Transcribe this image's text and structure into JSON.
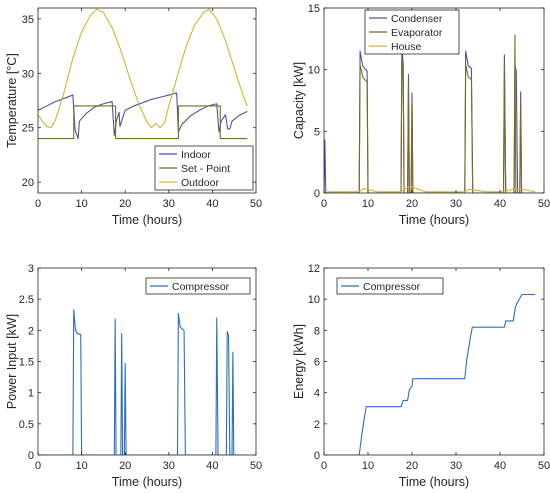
{
  "chart_data": [
    {
      "type": "line",
      "title": "",
      "xlabel": "Time (hours)",
      "ylabel": "Temperature [°C]",
      "xlim": [
        0,
        50
      ],
      "ylim": [
        19,
        36
      ],
      "xticks": [
        0,
        10,
        20,
        30,
        40,
        50
      ],
      "yticks": [
        20,
        25,
        30,
        35
      ],
      "legend_position": "lower-right",
      "series": [
        {
          "name": "Indoor",
          "color": "#4a55a2",
          "points": [
            [
              0,
              26.6
            ],
            [
              2,
              27.0
            ],
            [
              4,
              27.4
            ],
            [
              6,
              27.7
            ],
            [
              8,
              28.0
            ],
            [
              8.5,
              24.8
            ],
            [
              9.2,
              24.0
            ],
            [
              9.5,
              25.6
            ],
            [
              11,
              26.3
            ],
            [
              13,
              26.9
            ],
            [
              15,
              27.2
            ],
            [
              17,
              27.4
            ],
            [
              17.5,
              24.3
            ],
            [
              18,
              25.7
            ],
            [
              18.6,
              26.4
            ],
            [
              18.8,
              25.1
            ],
            [
              19.5,
              26.0
            ],
            [
              20,
              26.6
            ],
            [
              22,
              27.0
            ],
            [
              24,
              27.3
            ],
            [
              26,
              27.6
            ],
            [
              28,
              27.8
            ],
            [
              30,
              28.0
            ],
            [
              31.8,
              28.2
            ],
            [
              32.2,
              24.6
            ],
            [
              33,
              25.3
            ],
            [
              35,
              26.1
            ],
            [
              37,
              26.6
            ],
            [
              39,
              27.0
            ],
            [
              41,
              27.2
            ],
            [
              41.5,
              24.6
            ],
            [
              42,
              25.6
            ],
            [
              43,
              26.2
            ],
            [
              43.5,
              24.9
            ],
            [
              44,
              24.9
            ],
            [
              44.5,
              25.6
            ],
            [
              46,
              26.1
            ],
            [
              48,
              26.5
            ]
          ]
        },
        {
          "name": "Set - Point",
          "color": "#7a6a22",
          "points": [
            [
              0,
              24
            ],
            [
              8.2,
              24
            ],
            [
              8.2,
              27
            ],
            [
              17.8,
              27
            ],
            [
              17.8,
              24
            ],
            [
              32.2,
              24
            ],
            [
              32.2,
              27
            ],
            [
              41.8,
              27
            ],
            [
              41.8,
              24
            ],
            [
              48,
              24
            ]
          ]
        },
        {
          "name": "Outdoor",
          "color": "#d4b332",
          "points": [
            [
              0,
              26.2
            ],
            [
              1,
              25.6
            ],
            [
              2,
              25.1
            ],
            [
              3,
              25.0
            ],
            [
              4,
              25.7
            ],
            [
              6,
              28.3
            ],
            [
              8,
              31.4
            ],
            [
              10,
              33.8
            ],
            [
              12,
              35.3
            ],
            [
              13.5,
              35.9
            ],
            [
              15,
              35.6
            ],
            [
              17,
              34.2
            ],
            [
              19,
              32.1
            ],
            [
              21,
              29.6
            ],
            [
              23,
              27.3
            ],
            [
              25,
              25.5
            ],
            [
              26,
              25.0
            ],
            [
              27,
              25.4
            ],
            [
              28,
              25.0
            ],
            [
              29,
              25.4
            ],
            [
              30,
              27.0
            ],
            [
              32,
              29.8
            ],
            [
              34,
              32.5
            ],
            [
              36,
              34.5
            ],
            [
              38,
              35.6
            ],
            [
              39.2,
              35.9
            ],
            [
              41,
              35.0
            ],
            [
              43,
              33.0
            ],
            [
              45,
              30.5
            ],
            [
              47,
              28.0
            ],
            [
              48,
              27.0
            ]
          ]
        }
      ]
    },
    {
      "type": "line",
      "title": "",
      "xlabel": "Time (hours)",
      "ylabel": "Capacity [kW]",
      "xlim": [
        0,
        50
      ],
      "ylim": [
        0,
        15
      ],
      "xticks": [
        0,
        10,
        20,
        30,
        40,
        50
      ],
      "yticks": [
        0,
        5,
        10,
        15
      ],
      "legend_position": "top",
      "series": [
        {
          "name": "Condenser",
          "color": "#4a55a2",
          "points": [
            [
              0,
              0
            ],
            [
              0.2,
              4.3
            ],
            [
              0.4,
              0
            ],
            [
              8,
              0
            ],
            [
              8.2,
              11.5
            ],
            [
              8.8,
              10.3
            ],
            [
              9.5,
              10.0
            ],
            [
              9.8,
              9.9
            ],
            [
              10,
              0
            ],
            [
              17.5,
              0
            ],
            [
              17.7,
              11.8
            ],
            [
              18,
              10.5
            ],
            [
              18.2,
              0
            ],
            [
              19,
              0
            ],
            [
              19.2,
              9.6
            ],
            [
              19.4,
              0
            ],
            [
              19.8,
              0
            ],
            [
              20,
              8.1
            ],
            [
              20.2,
              0
            ],
            [
              32,
              0
            ],
            [
              32.2,
              11.5
            ],
            [
              32.8,
              10.3
            ],
            [
              33.5,
              10.1
            ],
            [
              33.8,
              0
            ],
            [
              40.8,
              0
            ],
            [
              41,
              11.2
            ],
            [
              41.3,
              0
            ],
            [
              43.2,
              0
            ],
            [
              43.4,
              10.3
            ],
            [
              43.7,
              9.9
            ],
            [
              44,
              0
            ],
            [
              44.5,
              0
            ],
            [
              44.7,
              8.2
            ],
            [
              44.9,
              0
            ],
            [
              48,
              0
            ]
          ]
        },
        {
          "name": "Evaporator",
          "color": "#7a6a22",
          "points": [
            [
              0,
              0
            ],
            [
              8,
              0
            ],
            [
              8.2,
              10.4
            ],
            [
              8.8,
              9.4
            ],
            [
              9.5,
              9.1
            ],
            [
              9.8,
              9.0
            ],
            [
              10,
              0
            ],
            [
              17.5,
              0
            ],
            [
              17.7,
              10.9
            ],
            [
              18,
              9.6
            ],
            [
              18.2,
              0
            ],
            [
              19,
              0
            ],
            [
              19.2,
              8.8
            ],
            [
              19.4,
              0
            ],
            [
              19.8,
              0
            ],
            [
              20,
              7.4
            ],
            [
              20.2,
              0
            ],
            [
              32,
              0
            ],
            [
              32.2,
              10.4
            ],
            [
              32.8,
              9.4
            ],
            [
              33.5,
              9.2
            ],
            [
              33.8,
              0
            ],
            [
              40.8,
              0
            ],
            [
              41,
              10.3
            ],
            [
              41.3,
              0
            ],
            [
              43.2,
              0
            ],
            [
              43.4,
              12.8
            ],
            [
              43.6,
              0
            ],
            [
              44.5,
              0
            ],
            [
              44.7,
              7.5
            ],
            [
              44.9,
              0
            ],
            [
              48,
              0
            ]
          ]
        },
        {
          "name": "House",
          "color": "#d4b332",
          "points": [
            [
              0,
              0.1
            ],
            [
              8,
              0.1
            ],
            [
              9,
              0.35
            ],
            [
              10,
              0.3
            ],
            [
              12,
              0.1
            ],
            [
              17.5,
              0.1
            ],
            [
              19,
              0.45
            ],
            [
              20,
              0.5
            ],
            [
              21.5,
              0.3
            ],
            [
              23,
              0.1
            ],
            [
              32,
              0.1
            ],
            [
              33,
              0.3
            ],
            [
              35,
              0.2
            ],
            [
              37,
              0.1
            ],
            [
              41,
              0.1
            ],
            [
              42,
              0.2
            ],
            [
              43,
              0.3
            ],
            [
              45,
              0.3
            ],
            [
              48,
              0.1
            ]
          ]
        }
      ]
    },
    {
      "type": "line",
      "title": "",
      "xlabel": "Time (hours)",
      "ylabel": "Power Input [kW]",
      "xlim": [
        0,
        50
      ],
      "ylim": [
        0,
        3
      ],
      "xticks": [
        0,
        10,
        20,
        30,
        40,
        50
      ],
      "yticks": [
        0,
        0.5,
        1,
        1.5,
        2,
        2.5,
        3
      ],
      "legend_position": "top-right",
      "series": [
        {
          "name": "Compressor",
          "color": "#2b6fbf",
          "points": [
            [
              0,
              0
            ],
            [
              8,
              0
            ],
            [
              8.2,
              2.33
            ],
            [
              8.6,
              2.0
            ],
            [
              9,
              1.95
            ],
            [
              9.8,
              1.93
            ],
            [
              10,
              0
            ],
            [
              17.5,
              0
            ],
            [
              17.7,
              2.18
            ],
            [
              17.9,
              0
            ],
            [
              19,
              0
            ],
            [
              19.2,
              1.95
            ],
            [
              19.4,
              0
            ],
            [
              19.8,
              0
            ],
            [
              20,
              1.47
            ],
            [
              20.2,
              0
            ],
            [
              32,
              0
            ],
            [
              32.2,
              2.27
            ],
            [
              32.6,
              2.05
            ],
            [
              33.5,
              2.0
            ],
            [
              33.8,
              0
            ],
            [
              40.8,
              0
            ],
            [
              41,
              2.2
            ],
            [
              41.3,
              0
            ],
            [
              43.2,
              0
            ],
            [
              43.4,
              1.98
            ],
            [
              43.7,
              1.92
            ],
            [
              44,
              0
            ],
            [
              44.5,
              0
            ],
            [
              44.7,
              1.65
            ],
            [
              44.9,
              0
            ],
            [
              48,
              0
            ]
          ]
        }
      ]
    },
    {
      "type": "line",
      "title": "",
      "xlabel": "Time (hours)",
      "ylabel": "Energy [kWh]",
      "xlim": [
        0,
        50
      ],
      "ylim": [
        0,
        12
      ],
      "xticks": [
        0,
        10,
        20,
        30,
        40,
        50
      ],
      "yticks": [
        0,
        2,
        4,
        6,
        8,
        10,
        12
      ],
      "legend_position": "top-left",
      "series": [
        {
          "name": "Compressor",
          "color": "#2b6fbf",
          "points": [
            [
              0,
              0
            ],
            [
              8,
              0
            ],
            [
              8.5,
              1.1
            ],
            [
              9,
              2.1
            ],
            [
              9.6,
              3.1
            ],
            [
              17.5,
              3.1
            ],
            [
              18,
              3.5
            ],
            [
              19,
              3.5
            ],
            [
              19.4,
              4.2
            ],
            [
              20,
              4.4
            ],
            [
              20.2,
              4.9
            ],
            [
              32,
              4.9
            ],
            [
              32.4,
              6.0
            ],
            [
              33,
              7.1
            ],
            [
              33.7,
              8.2
            ],
            [
              41,
              8.2
            ],
            [
              41.3,
              8.6
            ],
            [
              43,
              8.6
            ],
            [
              43.5,
              9.5
            ],
            [
              44,
              9.8
            ],
            [
              44.6,
              10.1
            ],
            [
              45,
              10.3
            ],
            [
              48,
              10.3
            ]
          ]
        }
      ]
    }
  ]
}
